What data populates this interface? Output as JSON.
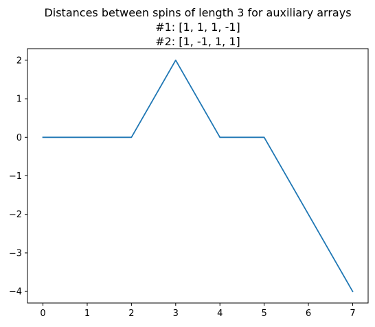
{
  "chart_data": {
    "type": "line",
    "title": [
      "Distances between spins of length 3 for auxiliary arrays",
      "#1:  [1, 1, 1, -1]",
      "#2: [1, -1, 1, 1]"
    ],
    "xlabel": "",
    "ylabel": "",
    "x": [
      0,
      1,
      2,
      3,
      4,
      5,
      6,
      7
    ],
    "series": [
      {
        "values": [
          0,
          0,
          0,
          2,
          0,
          0,
          -2,
          -4
        ],
        "color": "#1f77b4"
      }
    ],
    "xticks": [
      0,
      1,
      2,
      3,
      4,
      5,
      6,
      7
    ],
    "xtick_labels": [
      "0",
      "1",
      "2",
      "3",
      "4",
      "5",
      "6",
      "7"
    ],
    "yticks": [
      2,
      1,
      0,
      -1,
      -2,
      -3,
      -4
    ],
    "ytick_labels": [
      "2",
      "1",
      "0",
      "−1",
      "−2",
      "−3",
      "−4"
    ],
    "xlim": [
      -0.35,
      7.35
    ],
    "ylim": [
      -4.3,
      2.3
    ],
    "grid": false,
    "legend": "none"
  }
}
